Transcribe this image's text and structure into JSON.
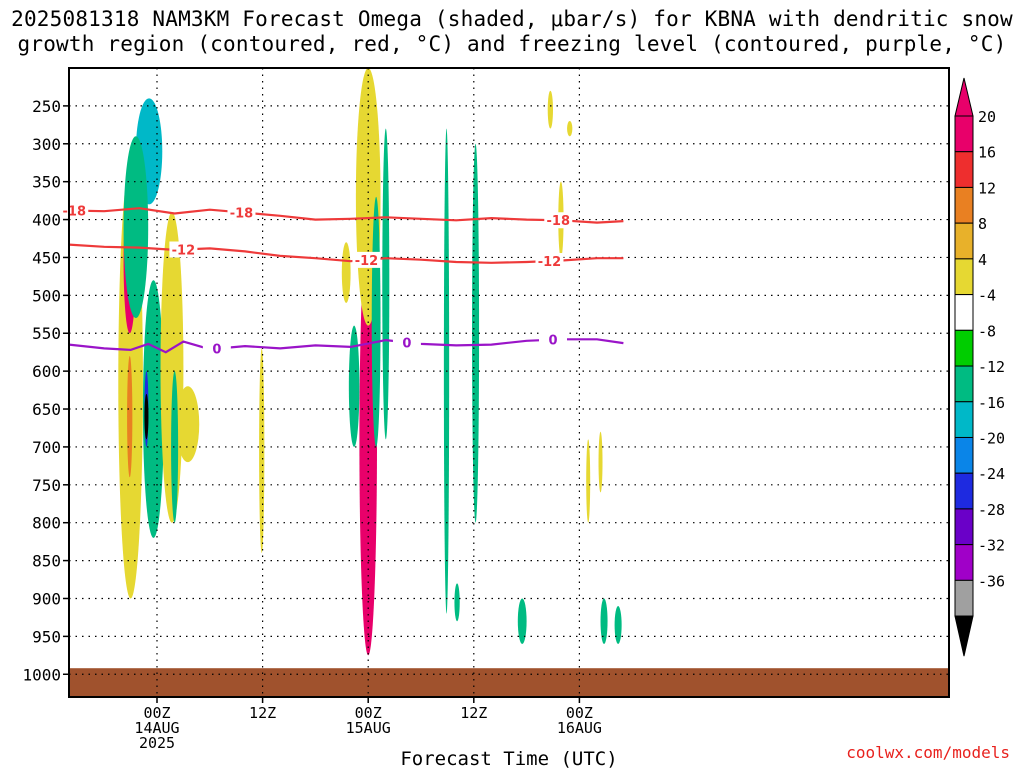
{
  "header": {
    "title_line1": "2025081318 NAM3KM Forecast Omega (shaded, μbar/s) for KBNA with dendritic snow",
    "title_line2": "growth region (contoured, red, °C) and freezing level (contoured, purple, °C)"
  },
  "credit": "coolwx.com/models",
  "chart_data": {
    "type": "heatmap",
    "xlabel": "Forecast Time (UTC)",
    "ylabel": "",
    "x_axis": {
      "unit": "hours since 2025-08-13 18Z",
      "range": [
        -5,
        45
      ],
      "ticks": [
        {
          "x": 0,
          "labels": [
            "00Z",
            "14AUG",
            "2025"
          ]
        },
        {
          "x": 6,
          "labels": [
            "12Z"
          ]
        },
        {
          "x": 12,
          "labels": [
            "00Z",
            "15AUG"
          ]
        },
        {
          "x": 18,
          "labels": [
            "12Z"
          ]
        },
        {
          "x": 24,
          "labels": [
            "00Z",
            "16AUG"
          ]
        }
      ]
    },
    "y_axis": {
      "unit": "hPa",
      "range": [
        200,
        1030
      ],
      "ticks": [
        250,
        300,
        350,
        400,
        450,
        500,
        550,
        600,
        650,
        700,
        750,
        800,
        850,
        900,
        950,
        1000
      ]
    },
    "colorbar": {
      "levels": [
        "20",
        "16",
        "12",
        "8",
        "4",
        "-4",
        "-8",
        "-12",
        "-16",
        "-20",
        "-24",
        "-28",
        "-32",
        "-36"
      ],
      "colors": [
        "#e8006a",
        "#ee2e2e",
        "#e98022",
        "#e8b12a",
        "#e6d832",
        "#ffffff",
        "#00cd00",
        "#00bb82",
        "#00b8c8",
        "#0a85e8",
        "#1e2ae0",
        "#6a00c8",
        "#a000c8",
        "#a0a0a0"
      ],
      "top_cap": "#e8006a",
      "bottom_cap": "#000000"
    },
    "omega_regions": [
      {
        "x": [
          -2.2,
          -0.8
        ],
        "y": [
          330,
          900
        ],
        "value": 6
      },
      {
        "x": [
          -1.9,
          -1.2
        ],
        "y": [
          360,
          550
        ],
        "value": 20
      },
      {
        "x": [
          -1.7,
          -1.4
        ],
        "y": [
          580,
          740
        ],
        "value": 12
      },
      {
        "x": [
          -0.8,
          0.4
        ],
        "y": [
          480,
          820
        ],
        "value": -10
      },
      {
        "x": [
          -0.7,
          -0.5
        ],
        "y": [
          600,
          700
        ],
        "value": -20
      },
      {
        "x": [
          -0.65,
          -0.55
        ],
        "y": [
          630,
          690
        ],
        "value": -36
      },
      {
        "x": [
          -1.2,
          0.3
        ],
        "y": [
          240,
          380
        ],
        "value": -12
      },
      {
        "x": [
          -1.9,
          -0.5
        ],
        "y": [
          290,
          530
        ],
        "value": -8
      },
      {
        "x": [
          0.2,
          1.5
        ],
        "y": [
          390,
          800
        ],
        "value": 6
      },
      {
        "x": [
          1.1,
          2.4
        ],
        "y": [
          620,
          720
        ],
        "value": 6
      },
      {
        "x": [
          0.8,
          1.2
        ],
        "y": [
          600,
          800
        ],
        "value": -8
      },
      {
        "x": [
          11.5,
          12.5
        ],
        "y": [
          410,
          975
        ],
        "value": 20
      },
      {
        "x": [
          11.3,
          12.7
        ],
        "y": [
          200,
          540
        ],
        "value": 6
      },
      {
        "x": [
          10.9,
          11.5
        ],
        "y": [
          540,
          700
        ],
        "value": -8
      },
      {
        "x": [
          12.2,
          12.7
        ],
        "y": [
          370,
          700
        ],
        "value": -8
      },
      {
        "x": [
          12.8,
          13.2
        ],
        "y": [
          280,
          690
        ],
        "value": -8
      },
      {
        "x": [
          5.8,
          6.1
        ],
        "y": [
          570,
          840
        ],
        "value": 6
      },
      {
        "x": [
          10.5,
          11.0
        ],
        "y": [
          430,
          510
        ],
        "value": 6
      },
      {
        "x": [
          16.3,
          16.6
        ],
        "y": [
          280,
          920
        ],
        "value": -8
      },
      {
        "x": [
          17.9,
          18.3
        ],
        "y": [
          300,
          800
        ],
        "value": -8
      },
      {
        "x": [
          22.2,
          22.5
        ],
        "y": [
          230,
          280
        ],
        "value": 6
      },
      {
        "x": [
          22.8,
          23.1
        ],
        "y": [
          350,
          450
        ],
        "value": 6
      },
      {
        "x": [
          23.3,
          23.6
        ],
        "y": [
          270,
          290
        ],
        "value": 6
      },
      {
        "x": [
          24.4,
          24.6
        ],
        "y": [
          690,
          800
        ],
        "value": 6
      },
      {
        "x": [
          25.1,
          25.3
        ],
        "y": [
          680,
          760
        ],
        "value": 6
      },
      {
        "x": [
          26.0,
          26.4
        ],
        "y": [
          910,
          960
        ],
        "value": -8
      },
      {
        "x": [
          25.2,
          25.6
        ],
        "y": [
          900,
          960
        ],
        "value": -8
      },
      {
        "x": [
          20.5,
          21.0
        ],
        "y": [
          900,
          960
        ],
        "value": -8
      },
      {
        "x": [
          16.9,
          17.2
        ],
        "y": [
          880,
          930
        ],
        "value": -8
      }
    ],
    "contours": [
      {
        "level": "-18",
        "color": "#ee3a3a",
        "label": "-18",
        "points": [
          [
            -5,
            388
          ],
          [
            -3,
            389
          ],
          [
            -1,
            385
          ],
          [
            1,
            392
          ],
          [
            3,
            387
          ],
          [
            5,
            391
          ],
          [
            7,
            395
          ],
          [
            9,
            400
          ],
          [
            11,
            399
          ],
          [
            13,
            397
          ],
          [
            15,
            399
          ],
          [
            17,
            401
          ],
          [
            19,
            398
          ],
          [
            21,
            400
          ],
          [
            23,
            401
          ],
          [
            25,
            404
          ],
          [
            26.5,
            402
          ]
        ],
        "label_x": [
          -4.7,
          4.8,
          22.8
        ]
      },
      {
        "level": "-12",
        "color": "#ee3a3a",
        "label": "-12",
        "points": [
          [
            -5,
            433
          ],
          [
            -3,
            436
          ],
          [
            -1,
            437
          ],
          [
            1,
            440
          ],
          [
            3,
            438
          ],
          [
            5,
            442
          ],
          [
            7,
            448
          ],
          [
            9,
            451
          ],
          [
            11,
            455
          ],
          [
            13,
            451
          ],
          [
            15,
            453
          ],
          [
            17,
            456
          ],
          [
            19,
            457
          ],
          [
            21,
            456
          ],
          [
            23,
            454
          ],
          [
            25,
            451
          ],
          [
            26.5,
            451
          ]
        ],
        "label_x": [
          1.5,
          11.9,
          22.3
        ]
      },
      {
        "level": "0",
        "color": "#9a14c8",
        "label": "0",
        "points": [
          [
            -5,
            565
          ],
          [
            -3,
            570
          ],
          [
            -1.5,
            572
          ],
          [
            -0.5,
            564
          ],
          [
            0.5,
            575
          ],
          [
            1.5,
            561
          ],
          [
            3,
            571
          ],
          [
            5,
            567
          ],
          [
            7,
            570
          ],
          [
            9,
            566
          ],
          [
            11,
            568
          ],
          [
            13,
            559
          ],
          [
            15,
            564
          ],
          [
            17,
            566
          ],
          [
            19,
            565
          ],
          [
            21,
            560
          ],
          [
            23,
            558
          ],
          [
            25,
            558
          ],
          [
            26.5,
            563
          ]
        ],
        "label_x": [
          3.4,
          14.2,
          22.5
        ]
      }
    ],
    "ground": {
      "y_top": 992,
      "color": "#a0522d"
    }
  }
}
